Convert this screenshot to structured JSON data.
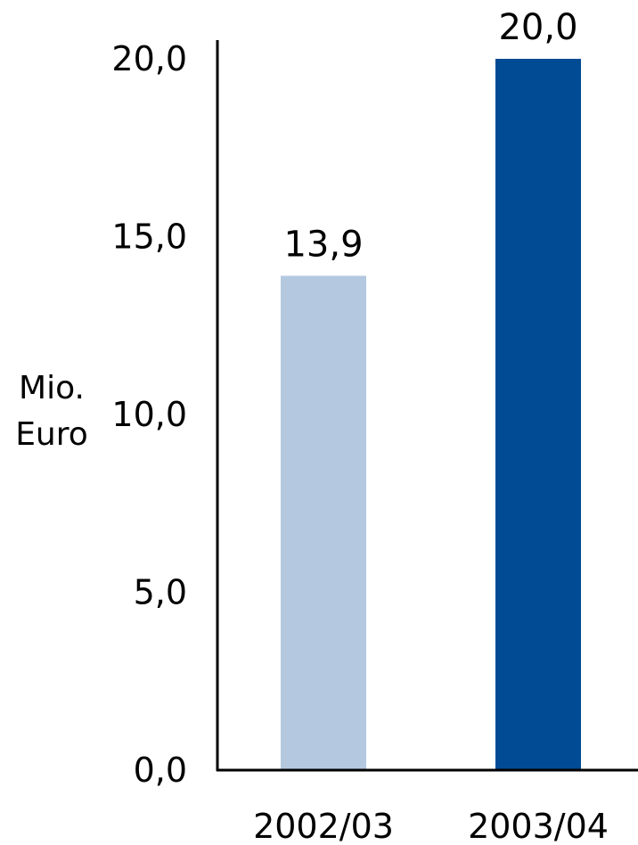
{
  "chart_data": {
    "type": "bar",
    "title": "",
    "xlabel": "",
    "ylabel": [
      "Mio.",
      "Euro"
    ],
    "categories": [
      "2002/03",
      "2003/04"
    ],
    "values": [
      13.9,
      20.0
    ],
    "value_labels": [
      "13,9",
      "20,0"
    ],
    "ylim": [
      0,
      20
    ],
    "yticks": [
      0,
      5,
      10,
      15,
      20
    ],
    "ytick_labels": [
      "0,0",
      "5,0",
      "10,0",
      "15,0",
      "20,0"
    ],
    "grid": false,
    "legend": "none",
    "colors": [
      "#b4c9df",
      "#004b93"
    ]
  }
}
